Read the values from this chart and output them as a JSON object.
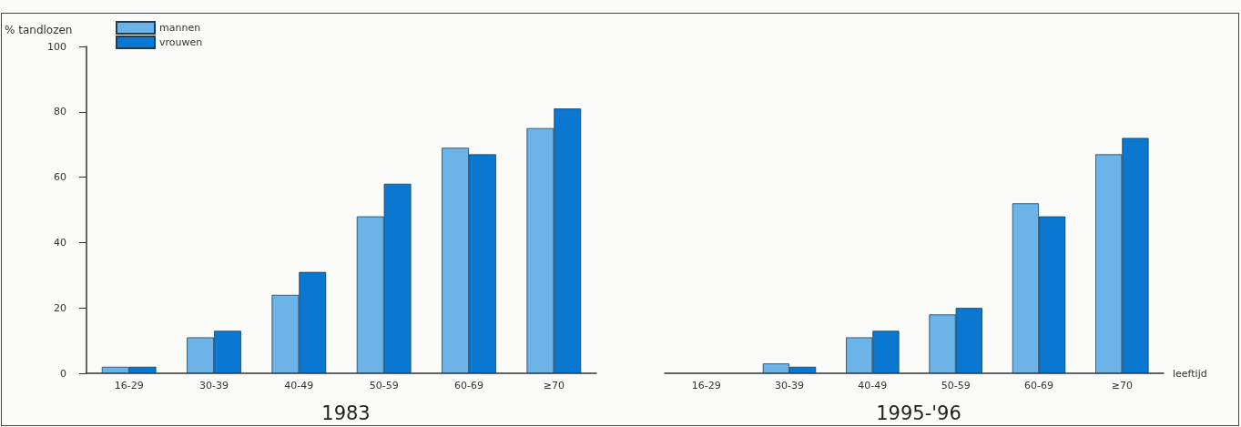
{
  "chart_data": [
    {
      "type": "bar",
      "title": "1983",
      "ylabel": "% tandlozen",
      "categories": [
        "16-29",
        "30-39",
        "40-49",
        "50-59",
        "60-69",
        "≥70"
      ],
      "series": [
        {
          "name": "mannen",
          "color": "#6cb4e8",
          "values": [
            2,
            11,
            24,
            48,
            69,
            75
          ]
        },
        {
          "name": "vrouwen",
          "color": "#0a78d0",
          "values": [
            2,
            13,
            31,
            58,
            67,
            81
          ]
        }
      ],
      "ylim": [
        0,
        100
      ],
      "yticks": [
        0,
        20,
        40,
        60,
        80,
        100
      ],
      "legend": "top left"
    },
    {
      "type": "bar",
      "title": "1995-'96",
      "xlabel": "leeftijd",
      "categories": [
        "16-29",
        "30-39",
        "40-49",
        "50-59",
        "60-69",
        "≥70"
      ],
      "series": [
        {
          "color": "#6cb4e8",
          "values": [
            0,
            3,
            11,
            18,
            52,
            67
          ]
        },
        {
          "color": "#0a78d0",
          "values": [
            0,
            2,
            13,
            20,
            48,
            72
          ]
        }
      ],
      "ylim": [
        0,
        100
      ],
      "yticks": [
        0,
        20,
        40,
        60,
        80,
        100
      ],
      "tick_labels": "x"
    }
  ]
}
